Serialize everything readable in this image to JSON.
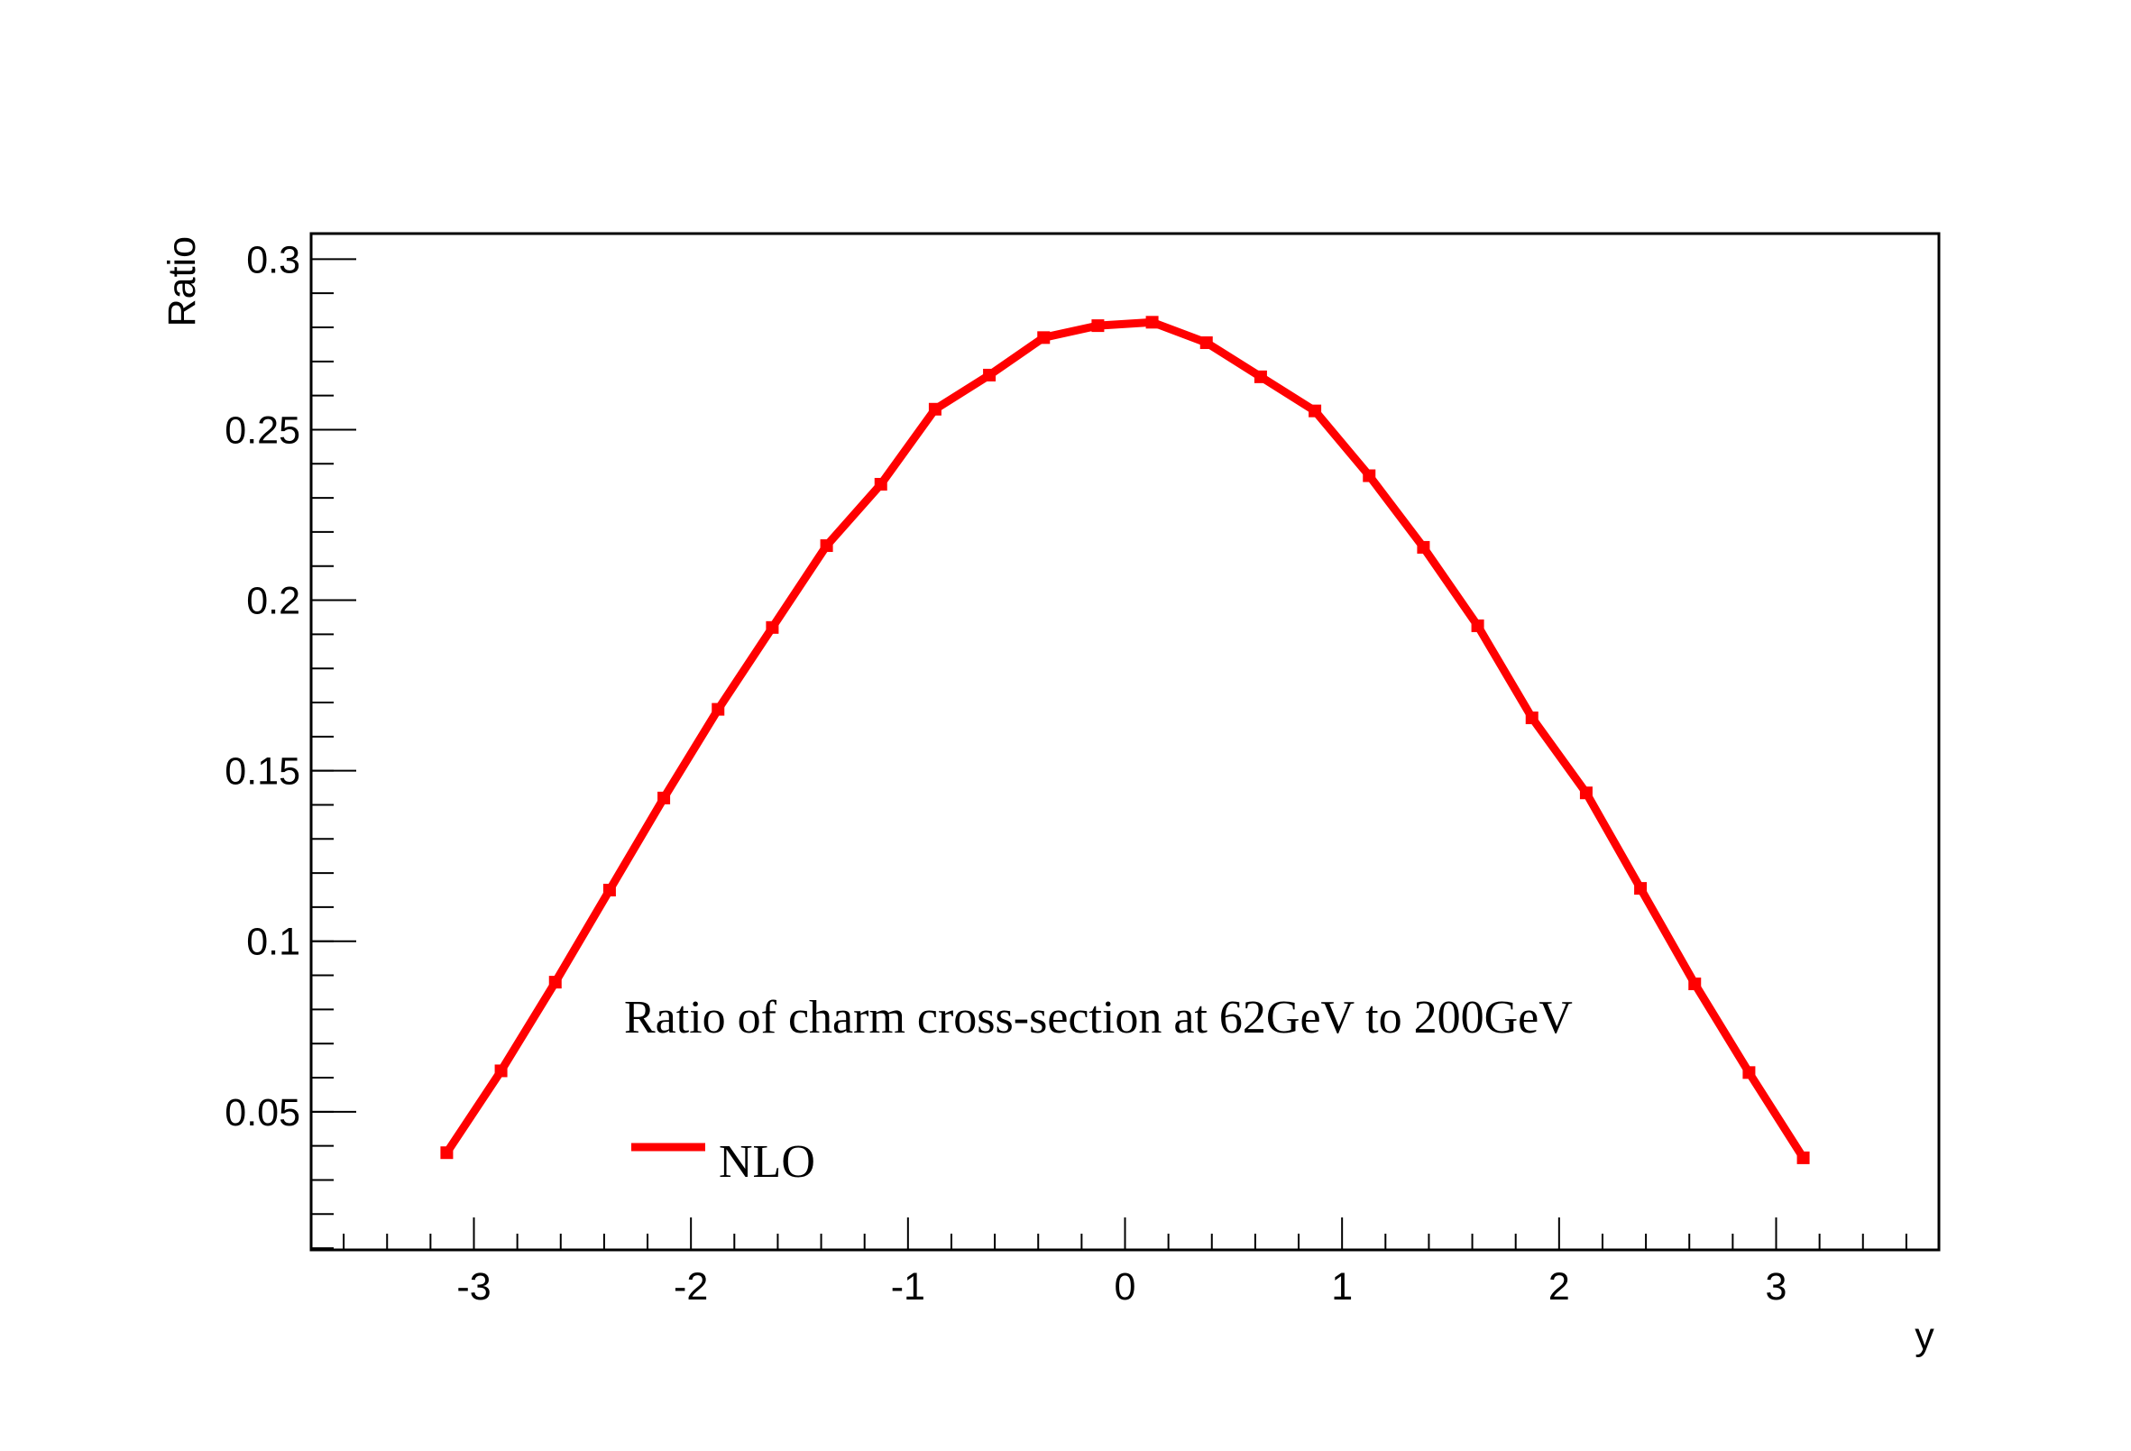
{
  "chart_data": {
    "type": "line",
    "title": "",
    "xlabel": "y",
    "ylabel": "Ratio",
    "xlim": [
      -3.75,
      3.75
    ],
    "ylim": [
      0.0095,
      0.3075
    ],
    "x_ticks": [
      -3,
      -2,
      -1,
      0,
      1,
      2,
      3
    ],
    "x_tick_labels": [
      "-3",
      "-2",
      "-1",
      "0",
      "1",
      "2",
      "3"
    ],
    "y_ticks": [
      0.05,
      0.1,
      0.15,
      0.2,
      0.25,
      0.3
    ],
    "y_tick_labels": [
      "0.05",
      "0.1",
      "0.15",
      "0.2",
      "0.25",
      "0.3"
    ],
    "grid": false,
    "legend_position": "bottom-left",
    "annotation": "Ratio of charm cross-section at 62GeV to 200GeV",
    "series": [
      {
        "name": "NLO",
        "color": "#ff0000",
        "x": [
          -3.125,
          -2.875,
          -2.625,
          -2.375,
          -2.125,
          -1.875,
          -1.625,
          -1.375,
          -1.125,
          -0.875,
          -0.625,
          -0.375,
          -0.125,
          0.125,
          0.375,
          0.625,
          0.875,
          1.125,
          1.375,
          1.625,
          1.875,
          2.125,
          2.375,
          2.625,
          2.875,
          3.125
        ],
        "y": [
          0.038,
          0.062,
          0.088,
          0.115,
          0.142,
          0.168,
          0.192,
          0.216,
          0.234,
          0.256,
          0.266,
          0.277,
          0.2805,
          0.2815,
          0.2755,
          0.2655,
          0.2555,
          0.2365,
          0.2155,
          0.1925,
          0.1655,
          0.1435,
          0.1155,
          0.0875,
          0.0615,
          0.0365
        ]
      }
    ]
  }
}
